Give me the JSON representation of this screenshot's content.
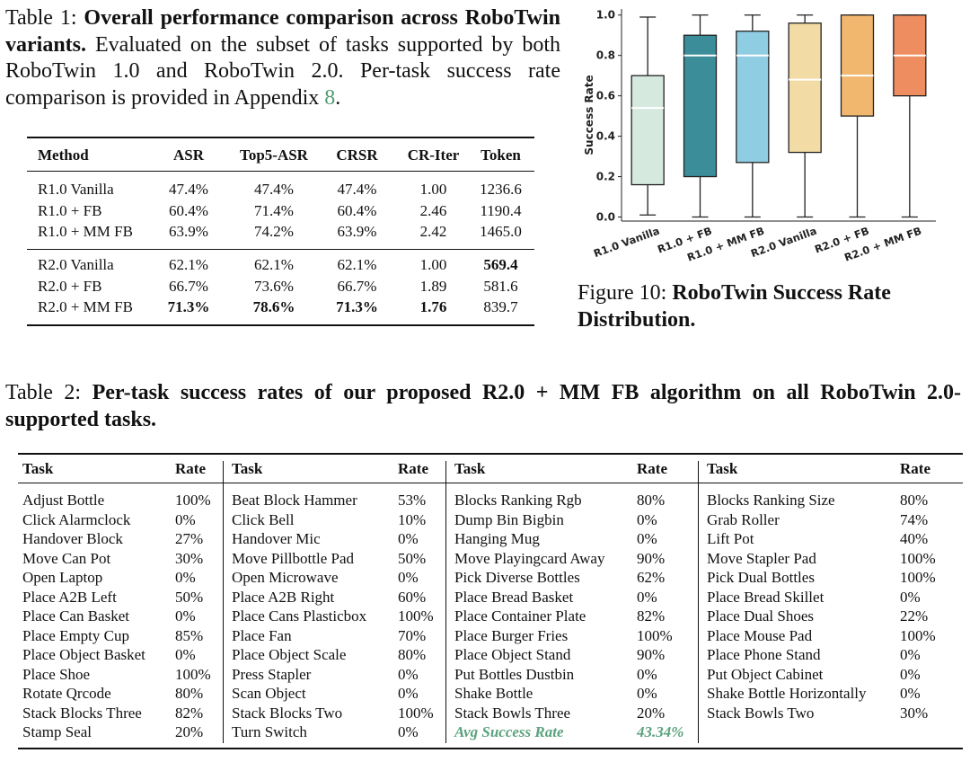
{
  "table1": {
    "caption_label": "Table 1:",
    "caption_title": "Overall performance comparison across RoboTwin variants.",
    "caption_text": "Evaluated on the subset of tasks supported by both RoboTwin 1.0 and RoboTwin 2.0. Per-task success rate comparison is provided in Appendix",
    "caption_ref": "8",
    "caption_end": ".",
    "header": [
      "Method",
      "ASR",
      "Top5-ASR",
      "CRSR",
      "CR-Iter",
      "Token"
    ],
    "groups": [
      [
        [
          "R1.0 Vanilla",
          "47.4%",
          "47.4%",
          "47.4%",
          "1.00",
          "1236.6"
        ],
        [
          "R1.0 + FB",
          "60.4%",
          "71.4%",
          "60.4%",
          "2.46",
          "1190.4"
        ],
        [
          "R1.0 + MM FB",
          "63.9%",
          "74.2%",
          "63.9%",
          "2.42",
          "1465.0"
        ]
      ],
      [
        [
          "R2.0 Vanilla",
          "62.1%",
          "62.1%",
          "62.1%",
          "1.00",
          "569.4"
        ],
        [
          "R2.0 + FB",
          "66.7%",
          "73.6%",
          "66.7%",
          "1.89",
          "581.6"
        ],
        [
          "R2.0 + MM FB",
          "71.3%",
          "78.6%",
          "71.3%",
          "1.76",
          "839.7"
        ]
      ]
    ]
  },
  "chart_data": {
    "type": "box",
    "ylabel": "Success Rate",
    "categories": [
      "R1.0 Vanilla",
      "R1.0 + FB",
      "R1.0 + MM FB",
      "R2.0 Vanilla",
      "R2.0 + FB",
      "R2.0 + MM FB"
    ],
    "boxes": [
      {
        "low": 0.01,
        "q1": 0.16,
        "median": 0.54,
        "q3": 0.7,
        "high": 0.99,
        "color": "#d6e9df"
      },
      {
        "low": 0,
        "q1": 0.2,
        "median": 0.8,
        "q3": 0.9,
        "high": 1.0,
        "color": "#3b8e99"
      },
      {
        "low": 0,
        "q1": 0.27,
        "median": 0.8,
        "q3": 0.92,
        "high": 1.0,
        "color": "#8fcde3"
      },
      {
        "low": 0,
        "q1": 0.32,
        "median": 0.68,
        "q3": 0.96,
        "high": 1.0,
        "color": "#f2dba4"
      },
      {
        "low": 0,
        "q1": 0.5,
        "median": 0.7,
        "q3": 1.0,
        "high": 1.0,
        "color": "#f1b76e"
      },
      {
        "low": 0,
        "q1": 0.6,
        "median": 0.8,
        "q3": 1.0,
        "high": 1.0,
        "color": "#ee8d5f"
      }
    ],
    "ylim": [
      -0.02,
      1.03
    ],
    "yticks": [
      {
        "value": 0,
        "label": "0.0"
      },
      {
        "value": 0.2,
        "label": "0.2"
      },
      {
        "value": 0.4,
        "label": "0.4"
      },
      {
        "value": 0.6,
        "label": "0.6"
      },
      {
        "value": 0.8,
        "label": "0.8"
      },
      {
        "value": 1,
        "label": "1.0"
      }
    ]
  },
  "figure_caption": {
    "label": "Figure 10:",
    "title": "RoboTwin Success Rate Distribution."
  },
  "table2": {
    "caption_label": "Table 2:",
    "caption_title": "Per-task success rates of our proposed R2.0 + MM FB algorithm on all RoboTwin 2.0-supported tasks.",
    "header": [
      "Task",
      "Rate"
    ],
    "columns": [
      [
        [
          "Adjust Bottle",
          "100%"
        ],
        [
          "Click Alarmclock",
          "0%"
        ],
        [
          "Handover Block",
          "27%"
        ],
        [
          "Move Can Pot",
          "30%"
        ],
        [
          "Open Laptop",
          "0%"
        ],
        [
          "Place A2B Left",
          "50%"
        ],
        [
          "Place Can Basket",
          "0%"
        ],
        [
          "Place Empty Cup",
          "85%"
        ],
        [
          "Place Object Basket",
          "0%"
        ],
        [
          "Place Shoe",
          "100%"
        ],
        [
          "Rotate Qrcode",
          "80%"
        ],
        [
          "Stack Blocks Three",
          "82%"
        ],
        [
          "Stamp Seal",
          "20%"
        ]
      ],
      [
        [
          "Beat Block Hammer",
          "53%"
        ],
        [
          "Click Bell",
          "10%"
        ],
        [
          "Handover Mic",
          "0%"
        ],
        [
          "Move Pillbottle Pad",
          "50%"
        ],
        [
          "Open Microwave",
          "0%"
        ],
        [
          "Place A2B Right",
          "60%"
        ],
        [
          "Place Cans Plasticbox",
          "100%"
        ],
        [
          "Place Fan",
          "70%"
        ],
        [
          "Place Object Scale",
          "80%"
        ],
        [
          "Press Stapler",
          "0%"
        ],
        [
          "Scan Object",
          "0%"
        ],
        [
          "Stack Blocks Two",
          "100%"
        ],
        [
          "Turn Switch",
          "0%"
        ]
      ],
      [
        [
          "Blocks Ranking Rgb",
          "80%"
        ],
        [
          "Dump Bin Bigbin",
          "0%"
        ],
        [
          "Hanging Mug",
          "0%"
        ],
        [
          "Move Playingcard Away",
          "90%"
        ],
        [
          "Pick Diverse Bottles",
          "62%"
        ],
        [
          "Place Bread Basket",
          "0%"
        ],
        [
          "Place Container Plate",
          "82%"
        ],
        [
          "Place Burger Fries",
          "100%"
        ],
        [
          "Place Object Stand",
          "90%"
        ],
        [
          "Put Bottles Dustbin",
          "0%"
        ],
        [
          "Shake Bottle",
          "0%"
        ],
        [
          "Stack Bowls Three",
          "20%"
        ],
        [
          "Avg Success Rate",
          "43.34%"
        ]
      ],
      [
        [
          "Blocks Ranking Size",
          "80%"
        ],
        [
          "Grab Roller",
          "74%"
        ],
        [
          "Lift Pot",
          "40%"
        ],
        [
          "Move Stapler Pad",
          "100%"
        ],
        [
          "Pick Dual Bottles",
          "100%"
        ],
        [
          "Place Bread Skillet",
          "0%"
        ],
        [
          "Place Dual Shoes",
          "22%"
        ],
        [
          "Place Mouse Pad",
          "100%"
        ],
        [
          "Place Phone Stand",
          "0%"
        ],
        [
          "Put Object Cabinet",
          "0%"
        ],
        [
          "Shake Bottle Horizontally",
          "0%"
        ],
        [
          "Stack Bowls Two",
          "30%"
        ]
      ]
    ]
  }
}
